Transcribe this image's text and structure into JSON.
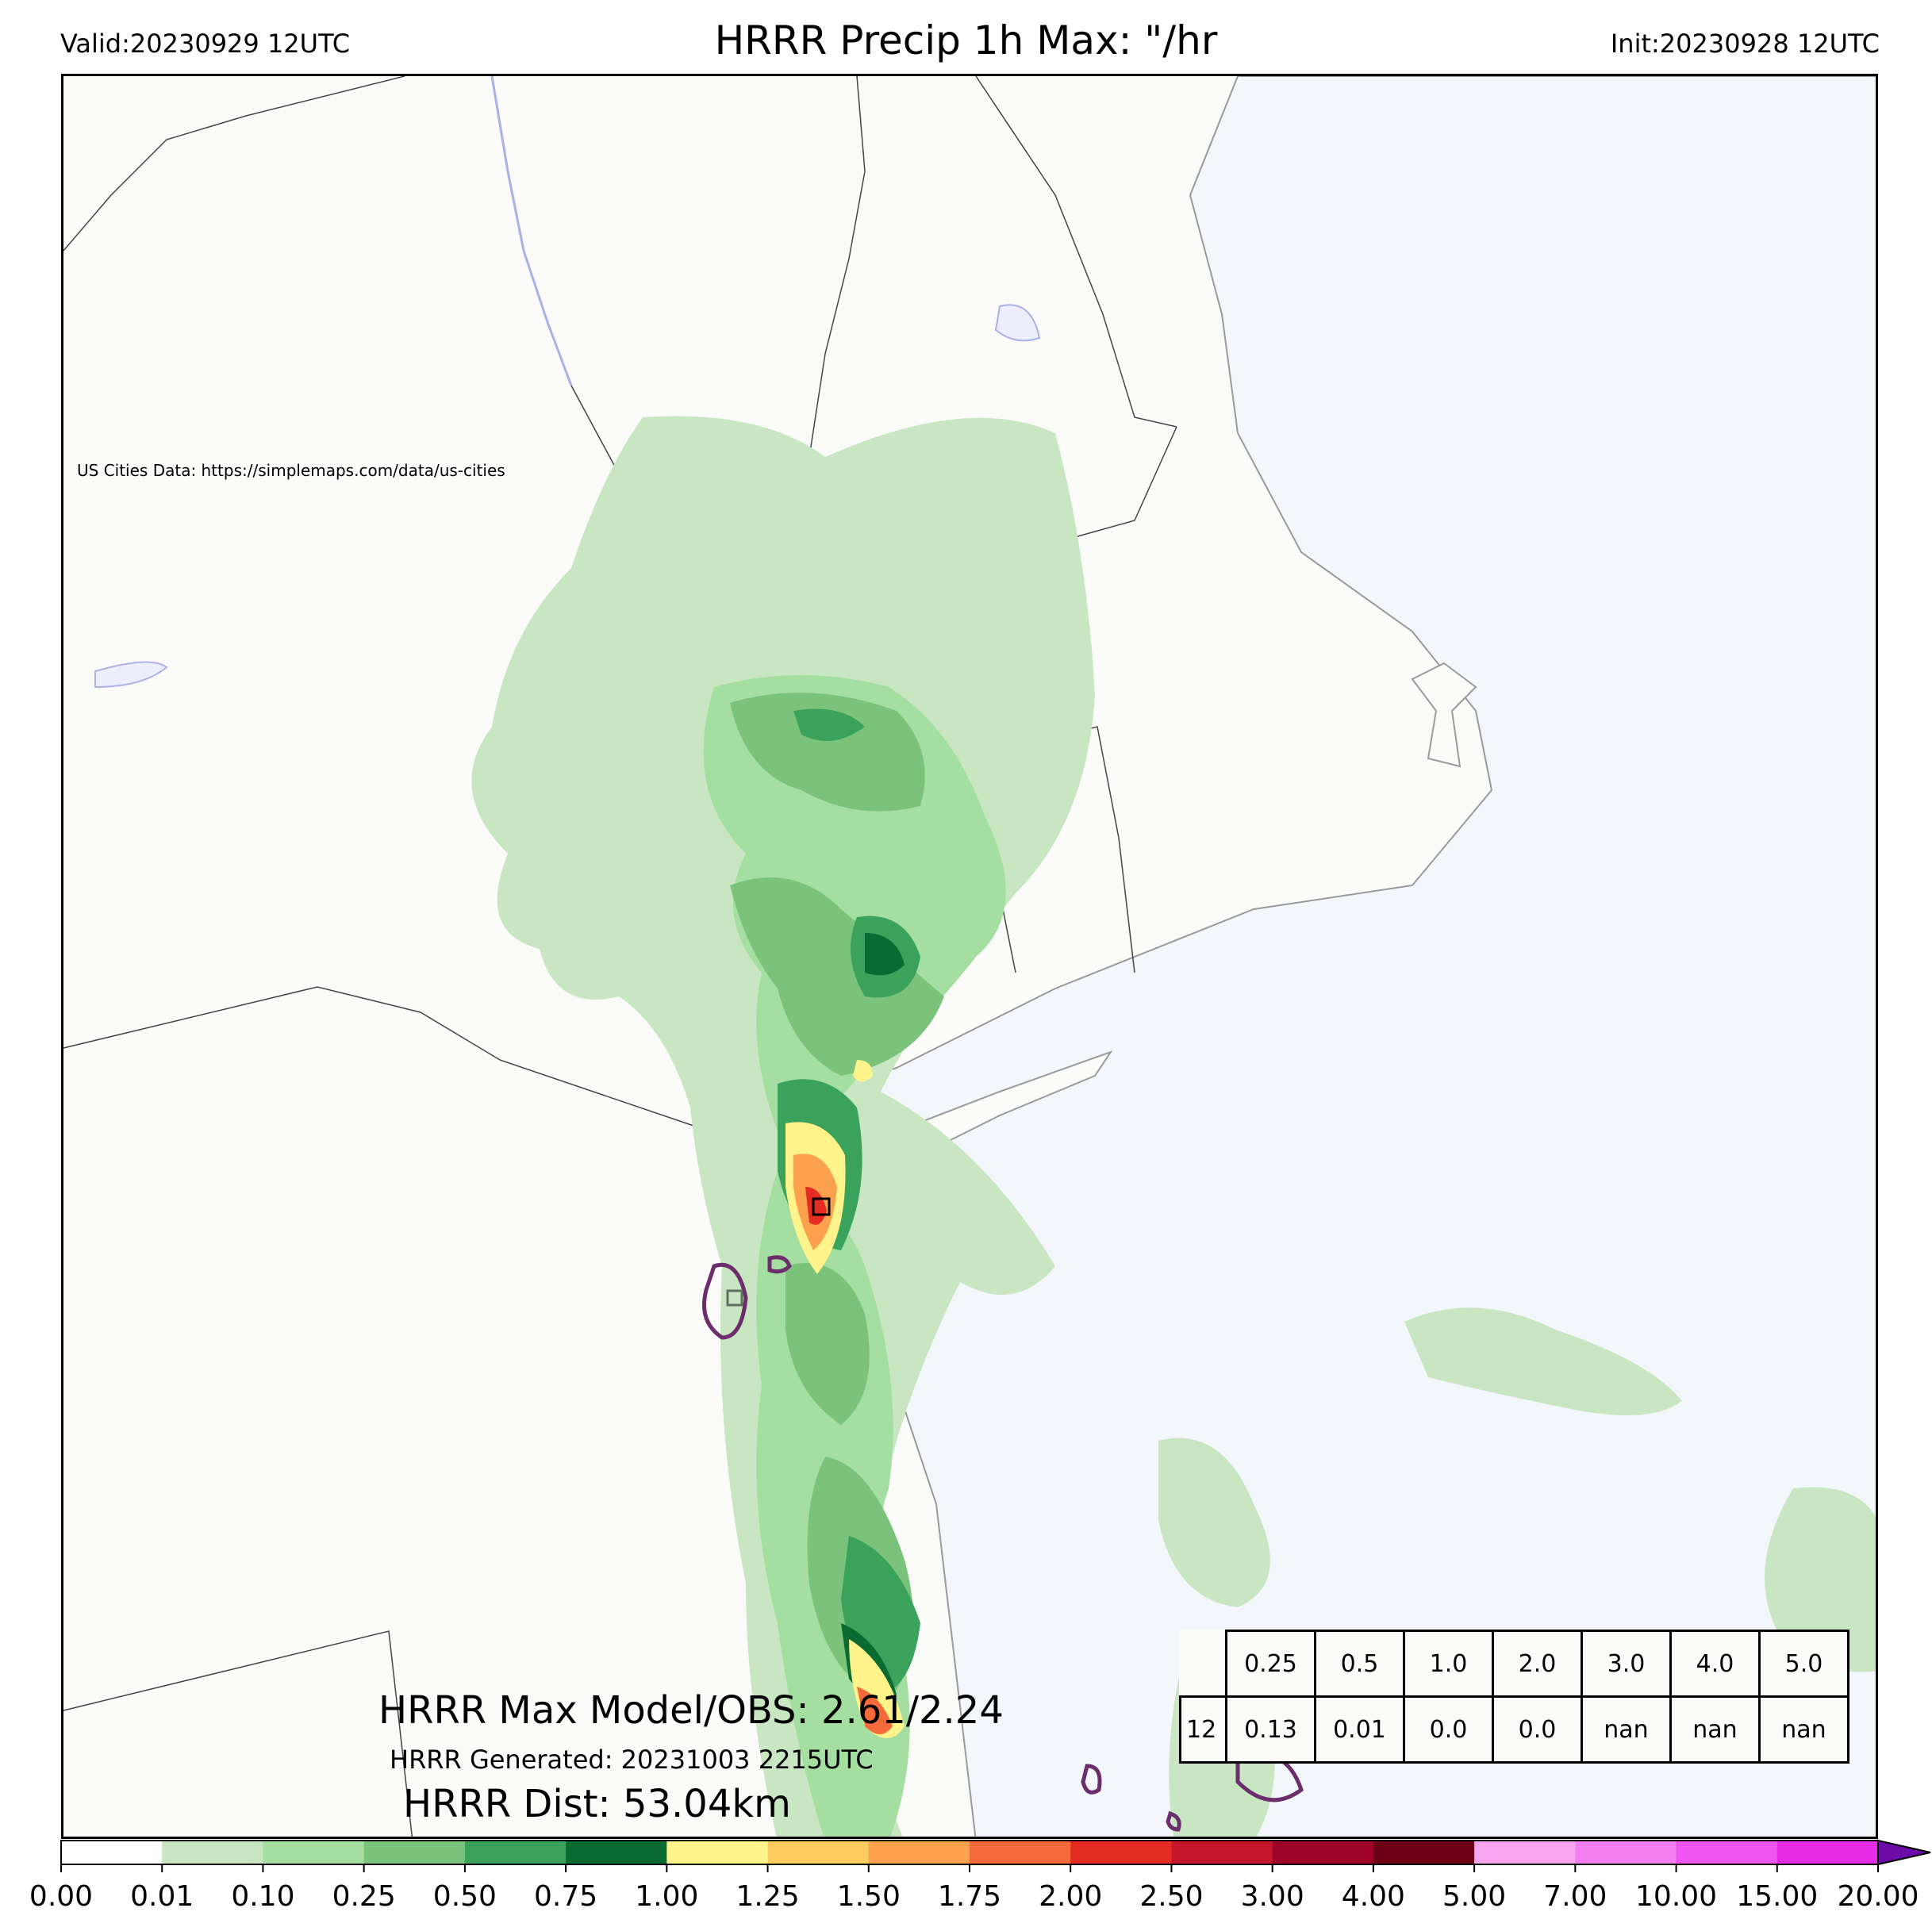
{
  "header": {
    "valid": "Valid:20230929 12UTC",
    "title": "HRRR Precip 1h Max: \"/hr",
    "init": "Init:20230928 12UTC"
  },
  "map": {
    "credit": "US Cities Data: https://simplemaps.com/data/us-cities",
    "colors": {
      "land": "#fbfbfa",
      "water": "#f3f6fb",
      "border": "#444444",
      "coast": "#9a9a9a",
      "obs_contour": "#6b2d6b"
    }
  },
  "stats": {
    "max_label": "HRRR Max Model/OBS: 2.61/2.24",
    "generated": "HRRR Generated: 20231003 2215UTC",
    "dist": "HRRR Dist: 53.04km"
  },
  "table": {
    "headers": [
      "0.25",
      "0.5",
      "1.0",
      "2.0",
      "3.0",
      "4.0",
      "5.0"
    ],
    "row_label": "12",
    "values": [
      "0.13",
      "0.01",
      "0.0",
      "0.0",
      "nan",
      "nan",
      "nan"
    ]
  },
  "colorbar": {
    "ticks": [
      "0.00",
      "0.01",
      "0.10",
      "0.25",
      "0.50",
      "0.75",
      "1.00",
      "1.25",
      "1.50",
      "1.75",
      "2.00",
      "2.50",
      "3.00",
      "4.00",
      "5.00",
      "7.00",
      "10.00",
      "15.00",
      "20.00"
    ],
    "colors": [
      "#ffffff",
      "#c7e6c1",
      "#a4dea0",
      "#7bc37b",
      "#3aa25a",
      "#0a6b32",
      "#fff48c",
      "#fccd5e",
      "#fca24e",
      "#f56a3a",
      "#e42c24",
      "#c3162a",
      "#a0032a",
      "#6d0118",
      "#f8a6f0",
      "#f47ff0",
      "#ef55ef",
      "#e52be6",
      "#a10ccf"
    ],
    "extend_color": "#6c0ba8"
  }
}
